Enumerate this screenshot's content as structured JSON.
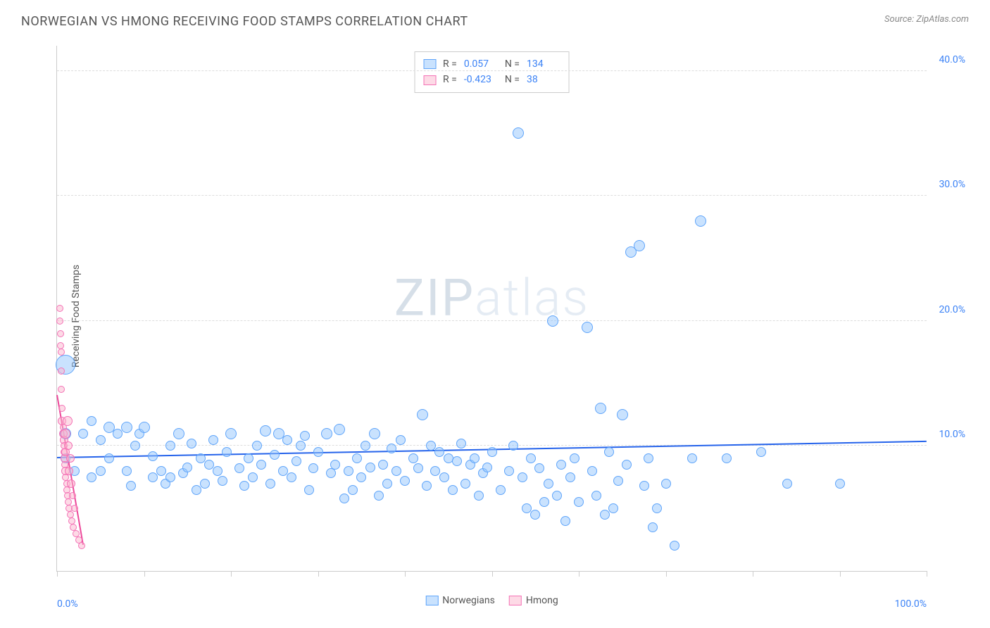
{
  "title": "NORWEGIAN VS HMONG RECEIVING FOOD STAMPS CORRELATION CHART",
  "source": "Source: ZipAtlas.com",
  "watermark_zip": "ZIP",
  "watermark_atlas": "atlas",
  "chart": {
    "type": "scatter",
    "ylabel": "Receiving Food Stamps",
    "xlim": [
      0,
      100
    ],
    "ylim": [
      0,
      42
    ],
    "yticks": [
      10,
      20,
      30,
      40
    ],
    "ytick_labels": [
      "10.0%",
      "20.0%",
      "30.0%",
      "40.0%"
    ],
    "xticks": [
      0,
      10,
      20,
      30,
      40,
      50,
      60,
      70,
      80,
      90,
      100
    ],
    "xtick_labels_shown": {
      "0": "0.0%",
      "100": "100.0%"
    },
    "background_color": "#ffffff",
    "grid_color": "#dddddd",
    "series": [
      {
        "name": "Norwegians",
        "color_fill": "rgba(147,197,253,0.5)",
        "color_stroke": "#60a5fa",
        "trend_color": "#2563eb",
        "marker_size": 16,
        "R": "0.057",
        "N": "134",
        "trend": {
          "x1": 0,
          "y1": 9.0,
          "x2": 100,
          "y2": 10.3
        },
        "points": [
          [
            1,
            16.5,
            28
          ],
          [
            1,
            11,
            16
          ],
          [
            1,
            9,
            14
          ],
          [
            2,
            8,
            14
          ],
          [
            3,
            11,
            14
          ],
          [
            4,
            7.5,
            14
          ],
          [
            4,
            12,
            14
          ],
          [
            5,
            8,
            14
          ],
          [
            5,
            10.5,
            14
          ],
          [
            6,
            9,
            14
          ],
          [
            6,
            11.5,
            16
          ],
          [
            7,
            11,
            14
          ],
          [
            8,
            8,
            14
          ],
          [
            8,
            11.5,
            16
          ],
          [
            8.5,
            6.8,
            14
          ],
          [
            9,
            10,
            14
          ],
          [
            9.5,
            11,
            14
          ],
          [
            10,
            11.5,
            16
          ],
          [
            11,
            7.5,
            14
          ],
          [
            11,
            9.2,
            14
          ],
          [
            12,
            8,
            14
          ],
          [
            12.5,
            7,
            14
          ],
          [
            13,
            10,
            14
          ],
          [
            13,
            7.5,
            14
          ],
          [
            14,
            11,
            16
          ],
          [
            14.5,
            7.8,
            14
          ],
          [
            15,
            8.3,
            14
          ],
          [
            15.5,
            10.2,
            14
          ],
          [
            16,
            6.5,
            14
          ],
          [
            16.5,
            9,
            14
          ],
          [
            17,
            7,
            14
          ],
          [
            17.5,
            8.5,
            14
          ],
          [
            18,
            10.5,
            14
          ],
          [
            18.5,
            8,
            14
          ],
          [
            19,
            7.2,
            14
          ],
          [
            19.5,
            9.5,
            14
          ],
          [
            20,
            11,
            16
          ],
          [
            21,
            8.2,
            14
          ],
          [
            21.5,
            6.8,
            14
          ],
          [
            22,
            9,
            14
          ],
          [
            22.5,
            7.5,
            14
          ],
          [
            23,
            10,
            14
          ],
          [
            23.5,
            8.5,
            14
          ],
          [
            24,
            11.2,
            16
          ],
          [
            24.5,
            7,
            14
          ],
          [
            25,
            9.3,
            14
          ],
          [
            25.5,
            11,
            16
          ],
          [
            26,
            8,
            14
          ],
          [
            26.5,
            10.5,
            14
          ],
          [
            27,
            7.5,
            14
          ],
          [
            27.5,
            8.8,
            14
          ],
          [
            28,
            10,
            14
          ],
          [
            28.5,
            10.8,
            14
          ],
          [
            29,
            6.5,
            14
          ],
          [
            29.5,
            8.2,
            14
          ],
          [
            30,
            9.5,
            14
          ],
          [
            31,
            11,
            16
          ],
          [
            31.5,
            7.8,
            14
          ],
          [
            32,
            8.5,
            14
          ],
          [
            32.5,
            11.3,
            16
          ],
          [
            33,
            5.8,
            14
          ],
          [
            33.5,
            8,
            14
          ],
          [
            34,
            6.5,
            14
          ],
          [
            34.5,
            9,
            14
          ],
          [
            35,
            7.5,
            14
          ],
          [
            35.5,
            10,
            14
          ],
          [
            36,
            8.3,
            14
          ],
          [
            36.5,
            11,
            16
          ],
          [
            37,
            6,
            14
          ],
          [
            37.5,
            8.5,
            14
          ],
          [
            38,
            7,
            14
          ],
          [
            38.5,
            9.8,
            14
          ],
          [
            39,
            8,
            14
          ],
          [
            39.5,
            10.5,
            14
          ],
          [
            40,
            7.2,
            14
          ],
          [
            41,
            9,
            14
          ],
          [
            41.5,
            8.2,
            14
          ],
          [
            42,
            12.5,
            16
          ],
          [
            42.5,
            6.8,
            14
          ],
          [
            43,
            10,
            14
          ],
          [
            43.5,
            8,
            14
          ],
          [
            44,
            9.5,
            14
          ],
          [
            44.5,
            7.5,
            14
          ],
          [
            45,
            9,
            14
          ],
          [
            45.5,
            6.5,
            14
          ],
          [
            46,
            8.8,
            14
          ],
          [
            46.5,
            10.2,
            14
          ],
          [
            47,
            7,
            14
          ],
          [
            47.5,
            8.5,
            14
          ],
          [
            48,
            9,
            14
          ],
          [
            48.5,
            6,
            14
          ],
          [
            49,
            7.8,
            14
          ],
          [
            49.5,
            8.3,
            14
          ],
          [
            50,
            9.5,
            14
          ],
          [
            51,
            6.5,
            14
          ],
          [
            52,
            8,
            14
          ],
          [
            52.5,
            10,
            14
          ],
          [
            53,
            35,
            16
          ],
          [
            53.5,
            7.5,
            14
          ],
          [
            54,
            5,
            14
          ],
          [
            54.5,
            9,
            14
          ],
          [
            55,
            4.5,
            14
          ],
          [
            55.5,
            8.2,
            14
          ],
          [
            56,
            5.5,
            14
          ],
          [
            56.5,
            7,
            14
          ],
          [
            57,
            20,
            16
          ],
          [
            57.5,
            6,
            14
          ],
          [
            58,
            8.5,
            14
          ],
          [
            58.5,
            4,
            14
          ],
          [
            59,
            7.5,
            14
          ],
          [
            59.5,
            9,
            14
          ],
          [
            60,
            5.5,
            14
          ],
          [
            61,
            19.5,
            16
          ],
          [
            61.5,
            8,
            14
          ],
          [
            62,
            6,
            14
          ],
          [
            62.5,
            13,
            16
          ],
          [
            63,
            4.5,
            14
          ],
          [
            63.5,
            9.5,
            14
          ],
          [
            64,
            5,
            14
          ],
          [
            64.5,
            7.2,
            14
          ],
          [
            65,
            12.5,
            16
          ],
          [
            65.5,
            8.5,
            14
          ],
          [
            66,
            25.5,
            16
          ],
          [
            67,
            26,
            16
          ],
          [
            67.5,
            6.8,
            14
          ],
          [
            68,
            9,
            14
          ],
          [
            68.5,
            3.5,
            14
          ],
          [
            69,
            5,
            14
          ],
          [
            70,
            7,
            14
          ],
          [
            71,
            2,
            14
          ],
          [
            73,
            9,
            14
          ],
          [
            74,
            28,
            16
          ],
          [
            77,
            9,
            14
          ],
          [
            81,
            9.5,
            14
          ],
          [
            84,
            7,
            14
          ],
          [
            90,
            7,
            14
          ]
        ]
      },
      {
        "name": "Hmong",
        "color_fill": "rgba(251,182,206,0.5)",
        "color_stroke": "#f472b6",
        "trend_color": "#ec4899",
        "marker_size": 12,
        "R": "-0.423",
        "N": "38",
        "trend": {
          "x1": 0,
          "y1": 14,
          "x2": 3,
          "y2": 2
        },
        "points": [
          [
            0.3,
            21,
            10
          ],
          [
            0.3,
            20,
            10
          ],
          [
            0.4,
            19,
            10
          ],
          [
            0.4,
            18,
            10
          ],
          [
            0.5,
            17.5,
            10
          ],
          [
            0.5,
            16,
            10
          ],
          [
            0.5,
            14.5,
            10
          ],
          [
            0.6,
            13,
            10
          ],
          [
            0.6,
            12,
            12
          ],
          [
            0.7,
            11.5,
            10
          ],
          [
            0.7,
            11,
            12
          ],
          [
            0.8,
            10.5,
            12
          ],
          [
            0.8,
            10,
            10
          ],
          [
            0.8,
            9.5,
            10
          ],
          [
            0.9,
            9,
            12
          ],
          [
            0.9,
            8.5,
            10
          ],
          [
            1,
            11,
            14
          ],
          [
            1,
            9.5,
            12
          ],
          [
            1,
            8,
            12
          ],
          [
            1,
            7.5,
            10
          ],
          [
            1.1,
            7,
            10
          ],
          [
            1.1,
            6.5,
            10
          ],
          [
            1.2,
            12,
            14
          ],
          [
            1.2,
            6,
            10
          ],
          [
            1.3,
            10,
            12
          ],
          [
            1.3,
            5.5,
            10
          ],
          [
            1.4,
            8,
            12
          ],
          [
            1.4,
            5,
            10
          ],
          [
            1.5,
            9,
            12
          ],
          [
            1.5,
            4.5,
            10
          ],
          [
            1.6,
            7,
            12
          ],
          [
            1.7,
            4,
            10
          ],
          [
            1.8,
            6,
            10
          ],
          [
            1.9,
            3.5,
            10
          ],
          [
            2,
            5,
            10
          ],
          [
            2.2,
            3,
            10
          ],
          [
            2.5,
            2.5,
            10
          ],
          [
            2.8,
            2,
            10
          ]
        ]
      }
    ],
    "legend": {
      "series1_label": "Norwegians",
      "series2_label": "Hmong"
    },
    "stats_box": {
      "r_label": "R =",
      "n_label": "N ="
    }
  }
}
